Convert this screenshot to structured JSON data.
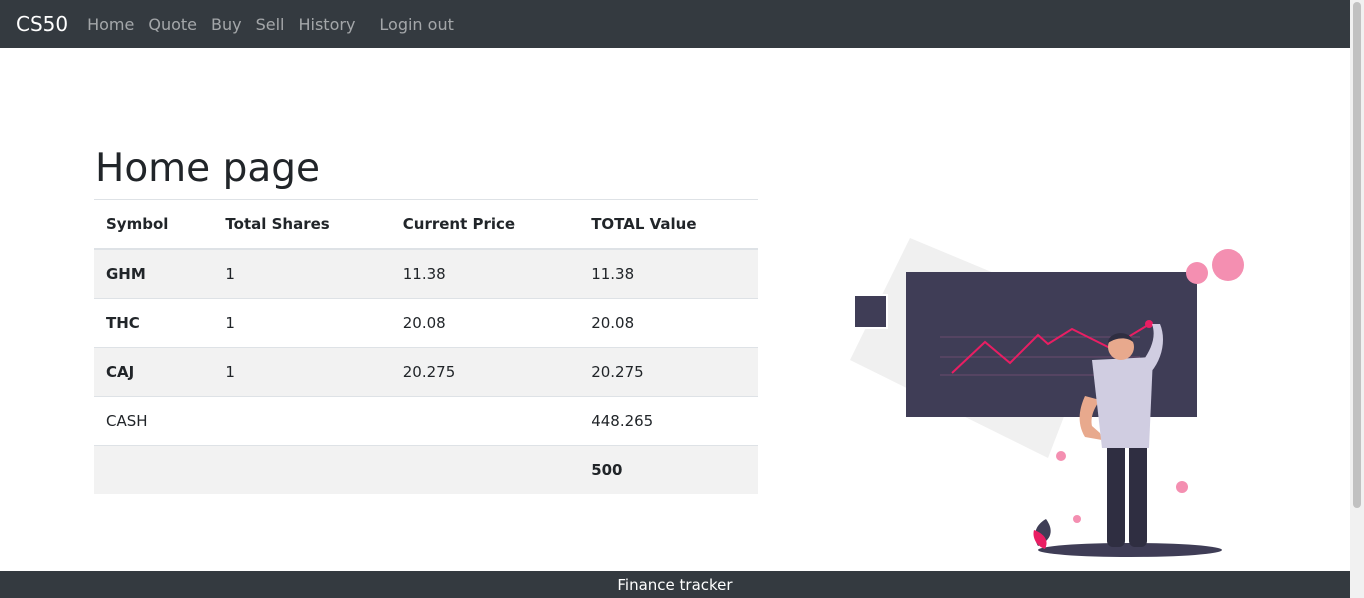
{
  "nav": {
    "brand": "CS50",
    "links": [
      "Home",
      "Quote",
      "Buy",
      "Sell",
      "History"
    ],
    "logout": "Login out"
  },
  "page": {
    "title": "Home page"
  },
  "table": {
    "headers": [
      "Symbol",
      "Total Shares",
      "Current Price",
      "TOTAL Value"
    ],
    "rows": [
      [
        "GHM",
        "1",
        "11.38",
        "11.38"
      ],
      [
        "THC",
        "1",
        "20.08",
        "20.08"
      ],
      [
        "CAJ",
        "1",
        "20.275",
        "20.275"
      ]
    ],
    "cash": {
      "label": "CASH",
      "value": "448.265"
    },
    "total": {
      "value": "500"
    }
  },
  "footer": {
    "text": "Finance tracker"
  },
  "colors": {
    "navbar_bg": "#343a40",
    "striped_row": "#f2f2f2",
    "board": "#3f3d56",
    "accent_pink": "#f48fb1",
    "accent_red": "#e91e63"
  }
}
